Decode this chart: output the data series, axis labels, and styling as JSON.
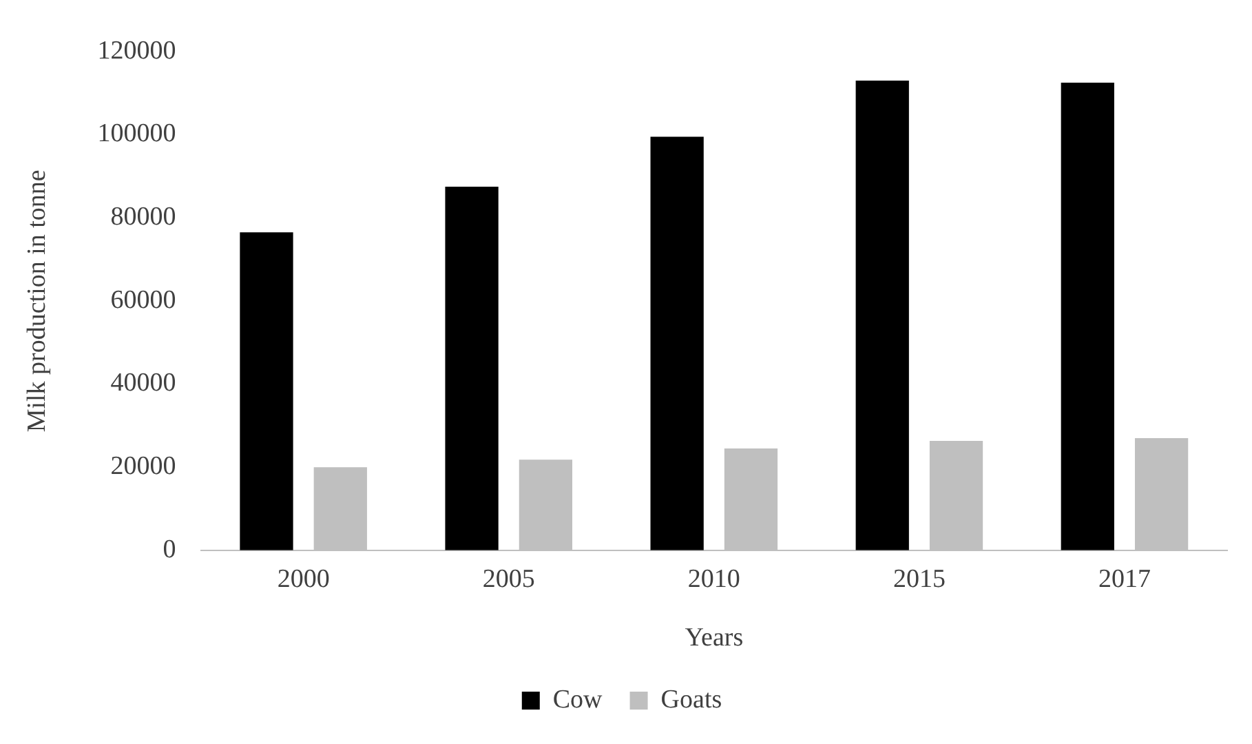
{
  "chart_data": {
    "type": "bar",
    "xlabel": "Years",
    "ylabel": "Milk production in tonne",
    "categories": [
      "2000",
      "2005",
      "2010",
      "2015",
      "2017"
    ],
    "series": [
      {
        "name": "Cow",
        "color": "#000000",
        "values": [
          76500,
          87500,
          99500,
          113000,
          112500
        ]
      },
      {
        "name": "Goats",
        "color": "#bfbfbf",
        "values": [
          20000,
          21800,
          24500,
          26300,
          27000
        ]
      }
    ],
    "ylim": [
      0,
      120000
    ],
    "yticks": [
      0,
      20000,
      40000,
      60000,
      80000,
      100000,
      120000
    ],
    "grid": false,
    "legend": "bottom"
  }
}
